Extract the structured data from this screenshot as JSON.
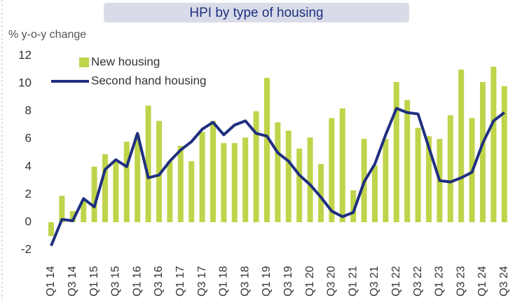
{
  "chart_data": {
    "type": "bar+line",
    "title": "HPI by type of housing",
    "y_label": "% y-o-y change",
    "categories": [
      "Q1 14",
      null,
      "Q3 14",
      null,
      "Q1 15",
      null,
      "Q3 15",
      null,
      "Q1 16",
      null,
      "Q3 16",
      null,
      "Q1 17",
      null,
      "Q3 17",
      null,
      "Q1 18",
      null,
      "Q3 18",
      null,
      "Q1 19",
      null,
      "Q3 19",
      null,
      "Q1 20",
      null,
      "Q3 20",
      null,
      "Q1 21",
      null,
      "Q3 21",
      null,
      "Q1 22",
      null,
      "Q3 22",
      null,
      "Q1 23",
      null,
      "Q3 23",
      null,
      "Q1 24",
      null,
      "Q3 24"
    ],
    "series": [
      {
        "name": "New housing",
        "type": "bar",
        "color": "#bfd44a",
        "values": [
          -1.0,
          1.9,
          0.8,
          1.6,
          4.0,
          4.9,
          4.4,
          5.8,
          6.3,
          8.4,
          7.3,
          4.4,
          5.5,
          4.4,
          6.5,
          7.3,
          5.7,
          5.7,
          6.1,
          8.0,
          10.4,
          7.2,
          6.6,
          5.3,
          6.1,
          4.2,
          7.5,
          8.2,
          2.3,
          6.0,
          4.1,
          6.0,
          10.1,
          8.8,
          6.8,
          6.2,
          6.0,
          7.7,
          11.0,
          7.5,
          10.1,
          11.2,
          9.8
        ]
      },
      {
        "name": "Second hand housing",
        "type": "line",
        "color": "#1f2f7f",
        "values": [
          -1.7,
          0.2,
          0.1,
          1.7,
          1.1,
          3.8,
          4.5,
          4.0,
          6.4,
          3.2,
          3.4,
          4.4,
          5.2,
          5.8,
          6.7,
          7.2,
          6.3,
          7.0,
          7.3,
          6.4,
          6.2,
          5.0,
          4.4,
          3.4,
          2.7,
          1.8,
          0.8,
          0.4,
          0.7,
          2.9,
          4.2,
          6.3,
          8.2,
          7.9,
          7.8,
          5.4,
          3.0,
          2.9,
          3.2,
          3.6,
          5.7,
          7.3,
          7.9
        ]
      }
    ],
    "ylim": [
      -2,
      12
    ],
    "yticks": [
      -2,
      0,
      2,
      4,
      6,
      8,
      10,
      12
    ],
    "legend": "upper left"
  }
}
